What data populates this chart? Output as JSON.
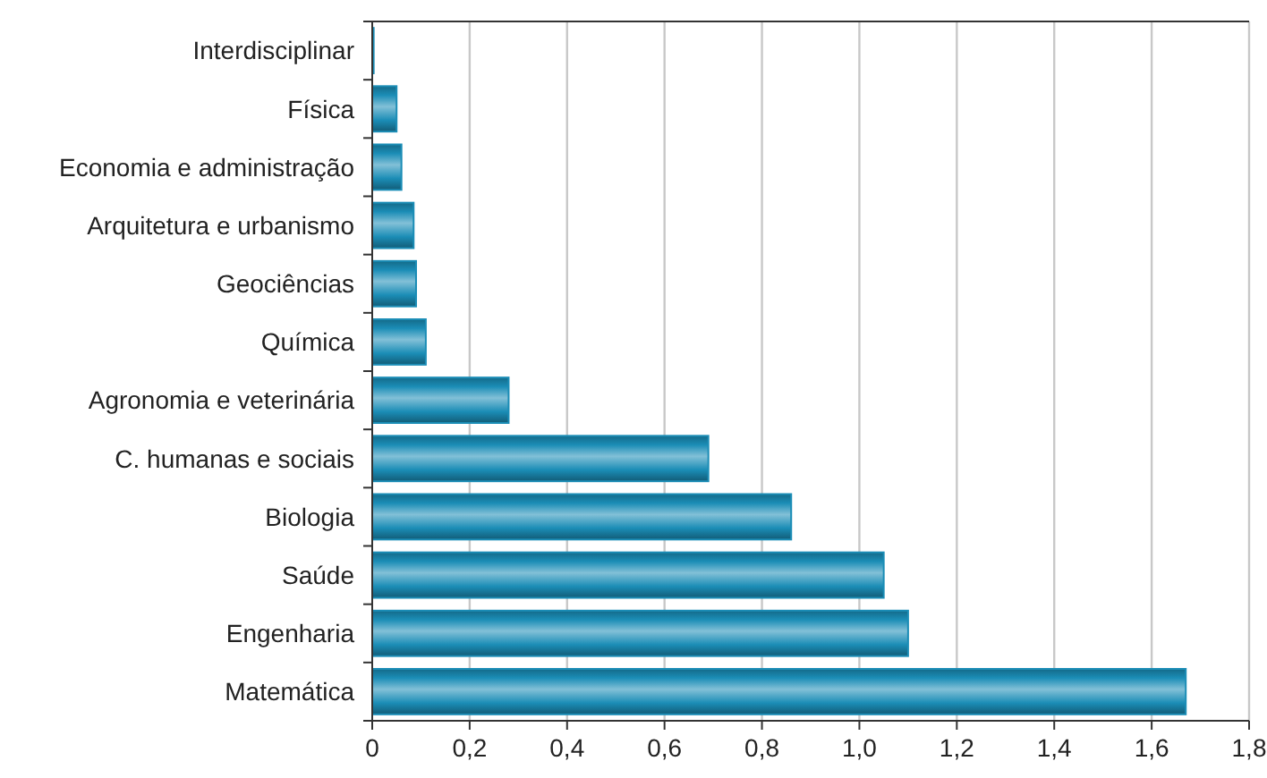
{
  "chart_data": {
    "type": "bar",
    "orientation": "horizontal",
    "categories": [
      "Interdisciplinar",
      "Física",
      "Economia e administração",
      "Arquitetura e urbanismo",
      "Geociências",
      "Química",
      "Agronomia e veterinária",
      "C. humanas e sociais",
      "Biologia",
      "Saúde",
      "Engenharia",
      "Matemática"
    ],
    "values": [
      0.003,
      0.05,
      0.06,
      0.085,
      0.09,
      0.11,
      0.28,
      0.69,
      0.86,
      1.05,
      1.1,
      1.67
    ],
    "color": "#1b8db6",
    "xlim": [
      0,
      1.8
    ],
    "xticks": [
      {
        "value": 0,
        "label": "0"
      },
      {
        "value": 0.2,
        "label": "0,2"
      },
      {
        "value": 0.4,
        "label": "0,4"
      },
      {
        "value": 0.6,
        "label": "0,6"
      },
      {
        "value": 0.8,
        "label": "0,8"
      },
      {
        "value": 1,
        "label": "1,0"
      },
      {
        "value": 1.2,
        "label": "1,2"
      },
      {
        "value": 1.4,
        "label": "1,4"
      },
      {
        "value": 1.6,
        "label": "1,6"
      },
      {
        "value": 1.8,
        "label": "1,8"
      }
    ],
    "grid": "x"
  }
}
